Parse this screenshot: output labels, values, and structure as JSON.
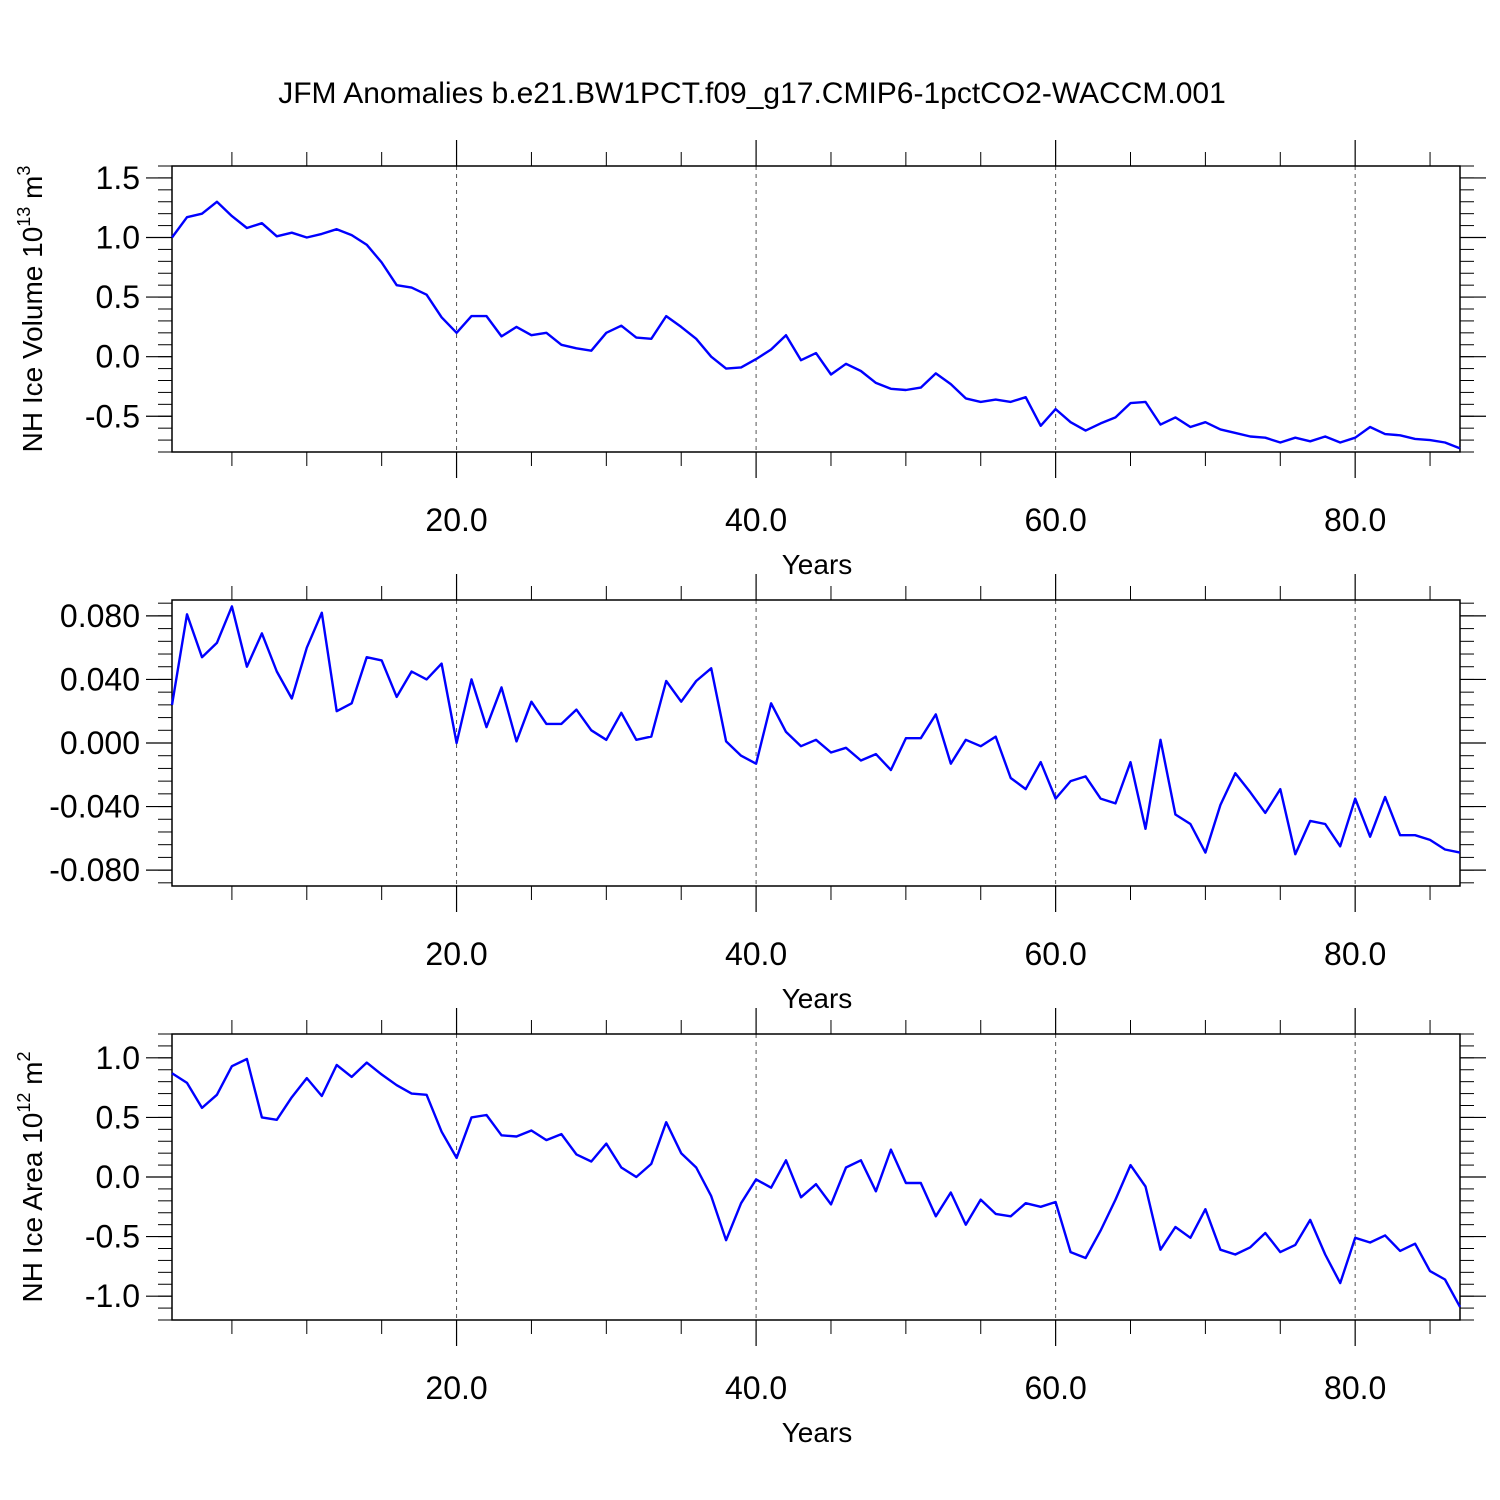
{
  "title": "JFM Anomalies b.e21.BW1PCT.f09_g17.CMIP6-1pctCO2-WACCM.001",
  "chart_data": [
    {
      "type": "line",
      "xlabel": "Years",
      "ylabel": "NH Ice Volume 10",
      "ylabel_sup": "13",
      "ylabel_unit": " m",
      "ylabel_unit_sup": "3",
      "xlim": [
        1,
        87
      ],
      "ylim": [
        -0.8,
        1.6
      ],
      "x_ticks": [
        20,
        40,
        60,
        80
      ],
      "x_tick_labels": [
        "20.0",
        "40.0",
        "60.0",
        "80.0"
      ],
      "y_ticks": [
        1.5,
        1.0,
        0.5,
        0.0,
        -0.5
      ],
      "y_tick_labels": [
        "1.5",
        "1.0",
        "0.5",
        "0.0",
        "-0.5"
      ],
      "y_minor_step": 0.1,
      "grid": "vertical dashed at major x ticks",
      "color": "#0000ff",
      "x": [
        1,
        2,
        3,
        4,
        5,
        6,
        7,
        8,
        9,
        10,
        11,
        12,
        13,
        14,
        15,
        16,
        17,
        18,
        19,
        20,
        21,
        22,
        23,
        24,
        25,
        26,
        27,
        28,
        29,
        30,
        31,
        32,
        33,
        34,
        35,
        36,
        37,
        38,
        39,
        40,
        41,
        42,
        43,
        44,
        45,
        46,
        47,
        48,
        49,
        50,
        51,
        52,
        53,
        54,
        55,
        56,
        57,
        58,
        59,
        60,
        61,
        62,
        63,
        64,
        65,
        66,
        67,
        68,
        69,
        70,
        71,
        72,
        73,
        74,
        75,
        76,
        77,
        78,
        79,
        80,
        81,
        82,
        83,
        84,
        85,
        86,
        87
      ],
      "values": [
        1.0,
        1.17,
        1.2,
        1.3,
        1.18,
        1.08,
        1.12,
        1.01,
        1.04,
        1.0,
        1.03,
        1.07,
        1.02,
        0.94,
        0.79,
        0.6,
        0.58,
        0.52,
        0.33,
        0.2,
        0.34,
        0.34,
        0.17,
        0.25,
        0.18,
        0.2,
        0.1,
        0.07,
        0.05,
        0.2,
        0.26,
        0.16,
        0.15,
        0.34,
        0.25,
        0.15,
        0.0,
        -0.1,
        -0.09,
        -0.02,
        0.06,
        0.18,
        -0.03,
        0.03,
        -0.15,
        -0.06,
        -0.12,
        -0.22,
        -0.27,
        -0.28,
        -0.26,
        -0.14,
        -0.23,
        -0.35,
        -0.38,
        -0.36,
        -0.38,
        -0.34,
        -0.58,
        -0.44,
        -0.55,
        -0.62,
        -0.56,
        -0.51,
        -0.39,
        -0.38,
        -0.57,
        -0.51,
        -0.59,
        -0.55,
        -0.61,
        -0.64,
        -0.67,
        -0.68,
        -0.72,
        -0.68,
        -0.71,
        -0.67,
        -0.72,
        -0.68,
        -0.59,
        -0.65,
        -0.66,
        -0.69,
        -0.7,
        -0.72,
        -0.77
      ]
    },
    {
      "type": "line",
      "xlabel": "Years",
      "ylabel": "",
      "xlim": [
        1,
        87
      ],
      "ylim": [
        -0.09,
        0.09
      ],
      "x_ticks": [
        20,
        40,
        60,
        80
      ],
      "x_tick_labels": [
        "20.0",
        "40.0",
        "60.0",
        "80.0"
      ],
      "y_ticks": [
        0.08,
        0.04,
        0.0,
        -0.04,
        -0.08
      ],
      "y_tick_labels": [
        "0.080",
        "0.040",
        "0.000",
        "-0.040",
        "-0.080"
      ],
      "y_minor_step": 0.008,
      "grid": "vertical dashed at major x ticks",
      "color": "#0000ff",
      "x": [
        1,
        2,
        3,
        4,
        5,
        6,
        7,
        8,
        9,
        10,
        11,
        12,
        13,
        14,
        15,
        16,
        17,
        18,
        19,
        20,
        21,
        22,
        23,
        24,
        25,
        26,
        27,
        28,
        29,
        30,
        31,
        32,
        33,
        34,
        35,
        36,
        37,
        38,
        39,
        40,
        41,
        42,
        43,
        44,
        45,
        46,
        47,
        48,
        49,
        50,
        51,
        52,
        53,
        54,
        55,
        56,
        57,
        58,
        59,
        60,
        61,
        62,
        63,
        64,
        65,
        66,
        67,
        68,
        69,
        70,
        71,
        72,
        73,
        74,
        75,
        76,
        77,
        78,
        79,
        80,
        81,
        82,
        83,
        84,
        85,
        86,
        87
      ],
      "values": [
        0.024,
        0.081,
        0.054,
        0.063,
        0.086,
        0.048,
        0.069,
        0.045,
        0.028,
        0.06,
        0.082,
        0.02,
        0.025,
        0.054,
        0.052,
        0.029,
        0.045,
        0.04,
        0.05,
        0.0,
        0.04,
        0.01,
        0.035,
        0.001,
        0.026,
        0.012,
        0.012,
        0.021,
        0.008,
        0.002,
        0.019,
        0.002,
        0.004,
        0.039,
        0.026,
        0.039,
        0.047,
        0.001,
        -0.008,
        -0.013,
        0.025,
        0.007,
        -0.002,
        0.002,
        -0.006,
        -0.003,
        -0.011,
        -0.007,
        -0.017,
        0.003,
        0.003,
        0.018,
        -0.013,
        0.002,
        -0.002,
        0.004,
        -0.022,
        -0.029,
        -0.012,
        -0.035,
        -0.024,
        -0.021,
        -0.035,
        -0.038,
        -0.012,
        -0.054,
        0.002,
        -0.045,
        -0.051,
        -0.069,
        -0.039,
        -0.019,
        -0.031,
        -0.044,
        -0.029,
        -0.07,
        -0.049,
        -0.051,
        -0.065,
        -0.035,
        -0.059,
        -0.034,
        -0.058,
        -0.058,
        -0.061,
        -0.067,
        -0.069
      ]
    },
    {
      "type": "line",
      "xlabel": "Years",
      "ylabel": "NH Ice Area 10",
      "ylabel_sup": "12",
      "ylabel_unit": " m",
      "ylabel_unit_sup": "2",
      "xlim": [
        1,
        87
      ],
      "ylim": [
        -1.2,
        1.2
      ],
      "x_ticks": [
        20,
        40,
        60,
        80
      ],
      "x_tick_labels": [
        "20.0",
        "40.0",
        "60.0",
        "80.0"
      ],
      "y_ticks": [
        1.0,
        0.5,
        0.0,
        -0.5,
        -1.0
      ],
      "y_tick_labels": [
        "1.0",
        "0.5",
        "0.0",
        "-0.5",
        "-1.0"
      ],
      "y_minor_step": 0.1,
      "grid": "vertical dashed at major x ticks",
      "color": "#0000ff",
      "x": [
        1,
        2,
        3,
        4,
        5,
        6,
        7,
        8,
        9,
        10,
        11,
        12,
        13,
        14,
        15,
        16,
        17,
        18,
        19,
        20,
        21,
        22,
        23,
        24,
        25,
        26,
        27,
        28,
        29,
        30,
        31,
        32,
        33,
        34,
        35,
        36,
        37,
        38,
        39,
        40,
        41,
        42,
        43,
        44,
        45,
        46,
        47,
        48,
        49,
        50,
        51,
        52,
        53,
        54,
        55,
        56,
        57,
        58,
        59,
        60,
        61,
        62,
        63,
        64,
        65,
        66,
        67,
        68,
        69,
        70,
        71,
        72,
        73,
        74,
        75,
        76,
        77,
        78,
        79,
        80,
        81,
        82,
        83,
        84,
        85,
        86,
        87
      ],
      "values": [
        0.87,
        0.79,
        0.58,
        0.69,
        0.93,
        0.99,
        0.5,
        0.48,
        0.67,
        0.83,
        0.68,
        0.94,
        0.84,
        0.96,
        0.86,
        0.77,
        0.7,
        0.69,
        0.38,
        0.16,
        0.5,
        0.52,
        0.35,
        0.34,
        0.39,
        0.31,
        0.36,
        0.19,
        0.13,
        0.28,
        0.08,
        0.0,
        0.11,
        0.46,
        0.2,
        0.08,
        -0.16,
        -0.53,
        -0.22,
        -0.02,
        -0.09,
        0.14,
        -0.17,
        -0.06,
        -0.23,
        0.08,
        0.14,
        -0.12,
        0.23,
        -0.05,
        -0.05,
        -0.33,
        -0.13,
        -0.4,
        -0.19,
        -0.31,
        -0.33,
        -0.22,
        -0.25,
        -0.21,
        -0.63,
        -0.68,
        -0.45,
        -0.19,
        0.1,
        -0.08,
        -0.61,
        -0.42,
        -0.51,
        -0.27,
        -0.61,
        -0.65,
        -0.59,
        -0.47,
        -0.63,
        -0.57,
        -0.36,
        -0.65,
        -0.89,
        -0.51,
        -0.55,
        -0.49,
        -0.62,
        -0.56,
        -0.79,
        -0.86,
        -1.09
      ]
    }
  ]
}
